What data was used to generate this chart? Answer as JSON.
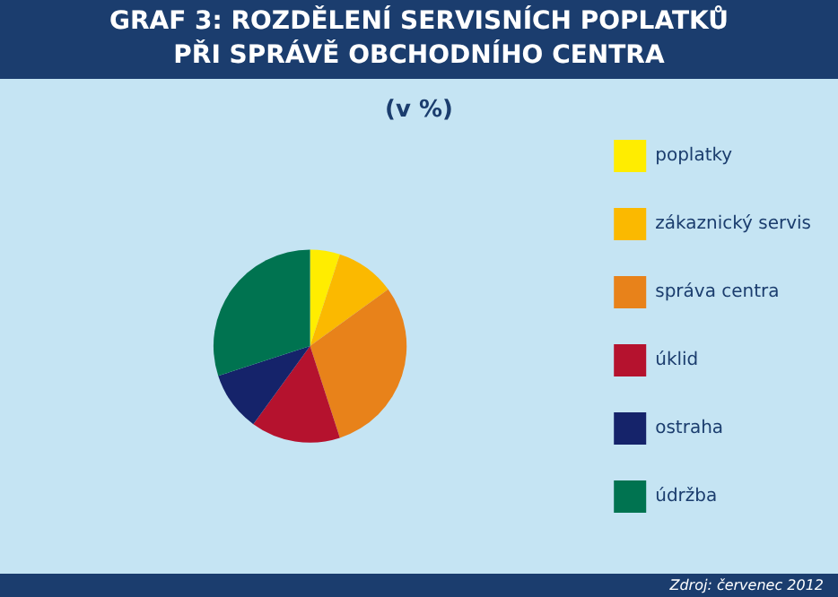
{
  "chart_data": {
    "type": "pie",
    "title": "GRAF 3: ROZDĚLENÍ SERVISNÍCH POPLATKŮ\nPŘI SPRÁVĚ OBCHODNÍHO CENTRA",
    "subtitle": "(v %)",
    "categories": [
      "poplatky",
      "zákaznický servis",
      "správa centra",
      "úklid",
      "ostraha",
      "údržba"
    ],
    "values": [
      5,
      10,
      30,
      15,
      10,
      30
    ],
    "colors": [
      "#ffed00",
      "#fbb900",
      "#e8821a",
      "#b5122e",
      "#15236a",
      "#007350"
    ],
    "legend": "right",
    "annotations": [
      "Zdroj: červenec 2012"
    ]
  }
}
